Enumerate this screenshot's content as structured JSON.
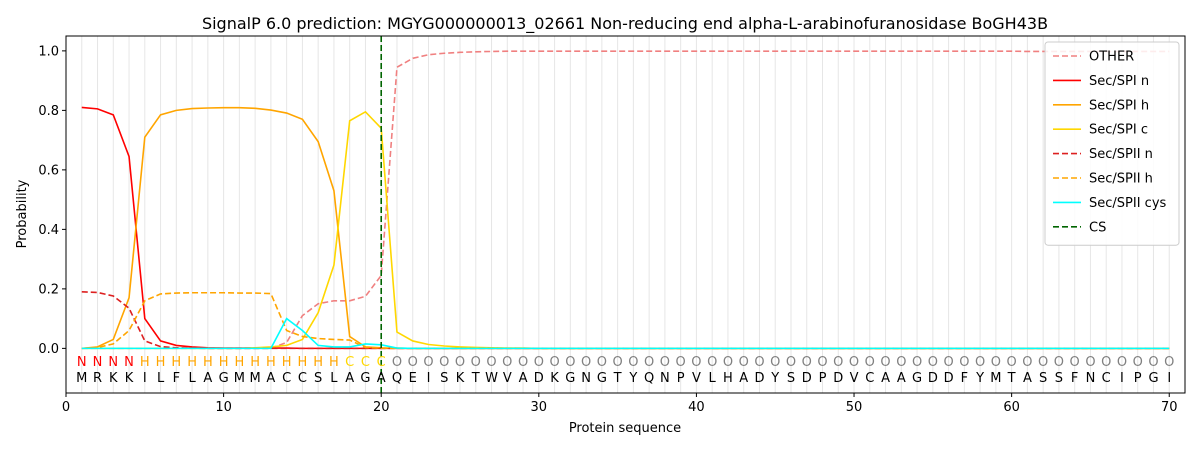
{
  "chart_data": {
    "type": "line",
    "title": "SignalP 6.0 prediction: MGYG000000013_02661 Non-reducing end alpha-L-arabinofuranosidase BoGH43B",
    "xlabel": "Protein sequence",
    "ylabel": "Probability",
    "xlim": [
      0,
      71
    ],
    "ylim": [
      -0.15,
      1.05
    ],
    "x_ticks": [
      0,
      10,
      20,
      30,
      40,
      50,
      60,
      70
    ],
    "y_ticks": [
      0.0,
      0.2,
      0.4,
      0.6,
      0.8,
      1.0
    ],
    "x_tick_labels": [
      "0",
      "10",
      "20",
      "30",
      "40",
      "50",
      "60",
      "70"
    ],
    "y_tick_labels": [
      "0.0",
      "0.2",
      "0.4",
      "0.6",
      "0.8",
      "1.0"
    ],
    "grid": "vertical lines at each position",
    "legend_position": "top-right",
    "sequence": [
      "M",
      "R",
      "K",
      "K",
      "I",
      "L",
      "F",
      "L",
      "A",
      "G",
      "M",
      "M",
      "A",
      "C",
      "C",
      "S",
      "L",
      "A",
      "G",
      "A",
      "Q",
      "E",
      "I",
      "S",
      "K",
      "T",
      "W",
      "V",
      "A",
      "D",
      "K",
      "G",
      "N",
      "G",
      "T",
      "Y",
      "Q",
      "N",
      "P",
      "V",
      "L",
      "H",
      "A",
      "D",
      "Y",
      "S",
      "D",
      "P",
      "D",
      "V",
      "C",
      "A",
      "A",
      "G",
      "D",
      "D",
      "F",
      "Y",
      "M",
      "T",
      "A",
      "S",
      "S",
      "F",
      "N",
      "C",
      "I",
      "P",
      "G",
      "I"
    ],
    "labels": [
      "N",
      "N",
      "N",
      "N",
      "H",
      "H",
      "H",
      "H",
      "H",
      "H",
      "H",
      "H",
      "H",
      "H",
      "H",
      "H",
      "H",
      "C",
      "C",
      "C",
      "O",
      "O",
      "O",
      "O",
      "O",
      "O",
      "O",
      "O",
      "O",
      "O",
      "O",
      "O",
      "O",
      "O",
      "O",
      "O",
      "O",
      "O",
      "O",
      "O",
      "O",
      "O",
      "O",
      "O",
      "O",
      "O",
      "O",
      "O",
      "O",
      "O",
      "O",
      "O",
      "O",
      "O",
      "O",
      "O",
      "O",
      "O",
      "O",
      "O",
      "O",
      "O",
      "O",
      "O",
      "O",
      "O",
      "O",
      "O",
      "O",
      "O"
    ],
    "label_colors": {
      "N": "#ff0000",
      "H": "#ffa500",
      "C": "#ffd700",
      "O": "#808080"
    },
    "cleavage_site": 20,
    "series": [
      {
        "name": "OTHER",
        "color": "#f08080",
        "dash": "dashed",
        "values": [
          0.0,
          0.0,
          0.0,
          0.0,
          0.0,
          0.0,
          0.0,
          0.0,
          0.0,
          0.0,
          0.0,
          0.0,
          0.0,
          0.02,
          0.11,
          0.15,
          0.16,
          0.16,
          0.175,
          0.245,
          0.945,
          0.975,
          0.987,
          0.992,
          0.995,
          0.997,
          0.998,
          0.999,
          0.999,
          0.999,
          0.999,
          0.999,
          0.999,
          0.999,
          0.999,
          0.999,
          0.999,
          0.999,
          0.999,
          0.999,
          0.999,
          0.999,
          0.999,
          0.999,
          0.999,
          0.999,
          0.999,
          0.999,
          0.999,
          0.999,
          0.999,
          0.999,
          0.999,
          0.999,
          0.999,
          0.999,
          0.999,
          0.999,
          0.999,
          0.999,
          0.998,
          0.998,
          0.998,
          0.998,
          0.998,
          0.998,
          0.998,
          0.998,
          0.998,
          0.998
        ]
      },
      {
        "name": "Sec/SPI n",
        "color": "#ff0000",
        "dash": "solid",
        "values": [
          0.81,
          0.805,
          0.785,
          0.645,
          0.1,
          0.025,
          0.01,
          0.005,
          0.002,
          0.001,
          0.001,
          0.001,
          0.001,
          0.001,
          0.0,
          0.0,
          0.0,
          0.0,
          0.0,
          0.0,
          0.0,
          0.0,
          0.0,
          0.0,
          0.0,
          0.0,
          0.0,
          0.0,
          0.0,
          0.0,
          0.0,
          0.0,
          0.0,
          0.0,
          0.0,
          0.0,
          0.0,
          0.0,
          0.0,
          0.0,
          0.0,
          0.0,
          0.0,
          0.0,
          0.0,
          0.0,
          0.0,
          0.0,
          0.0,
          0.0,
          0.0,
          0.0,
          0.0,
          0.0,
          0.0,
          0.0,
          0.0,
          0.0,
          0.0,
          0.0,
          0.0,
          0.0,
          0.0,
          0.0,
          0.0,
          0.0,
          0.0,
          0.0,
          0.0,
          0.0
        ]
      },
      {
        "name": "Sec/SPI h",
        "color": "#ffa500",
        "dash": "solid",
        "values": [
          0.0,
          0.005,
          0.03,
          0.17,
          0.71,
          0.785,
          0.8,
          0.806,
          0.808,
          0.809,
          0.809,
          0.807,
          0.801,
          0.791,
          0.77,
          0.695,
          0.53,
          0.04,
          0.005,
          0.002,
          0.001,
          0.0,
          0.0,
          0.0,
          0.0,
          0.0,
          0.0,
          0.0,
          0.0,
          0.0,
          0.0,
          0.0,
          0.0,
          0.0,
          0.0,
          0.0,
          0.0,
          0.0,
          0.0,
          0.0,
          0.0,
          0.0,
          0.0,
          0.0,
          0.0,
          0.0,
          0.0,
          0.0,
          0.0,
          0.0,
          0.0,
          0.0,
          0.0,
          0.0,
          0.0,
          0.0,
          0.0,
          0.0,
          0.0,
          0.0,
          0.0,
          0.0,
          0.0,
          0.0,
          0.0,
          0.0,
          0.0,
          0.0,
          0.0,
          0.0
        ]
      },
      {
        "name": "Sec/SPI c",
        "color": "#ffd700",
        "dash": "solid",
        "values": [
          0.0,
          0.0,
          0.0,
          0.0,
          0.0,
          0.0,
          0.0,
          0.0,
          0.0,
          0.0,
          0.0,
          0.002,
          0.005,
          0.01,
          0.03,
          0.12,
          0.28,
          0.765,
          0.795,
          0.74,
          0.055,
          0.025,
          0.013,
          0.008,
          0.005,
          0.003,
          0.002,
          0.001,
          0.001,
          0.0,
          0.0,
          0.0,
          0.0,
          0.0,
          0.0,
          0.0,
          0.0,
          0.0,
          0.0,
          0.0,
          0.0,
          0.0,
          0.0,
          0.0,
          0.0,
          0.0,
          0.0,
          0.0,
          0.0,
          0.0,
          0.0,
          0.0,
          0.0,
          0.0,
          0.0,
          0.0,
          0.0,
          0.0,
          0.0,
          0.0,
          0.0,
          0.0,
          0.0,
          0.0,
          0.0,
          0.0,
          0.0,
          0.0,
          0.0,
          0.0
        ]
      },
      {
        "name": "Sec/SPII n",
        "color": "#dd2020",
        "dash": "dashed",
        "values": [
          0.19,
          0.188,
          0.176,
          0.135,
          0.025,
          0.006,
          0.002,
          0.001,
          0.0,
          0.0,
          0.0,
          0.0,
          0.0,
          0.0,
          0.0,
          0.0,
          0.0,
          0.0,
          0.0,
          0.0,
          0.0,
          0.0,
          0.0,
          0.0,
          0.0,
          0.0,
          0.0,
          0.0,
          0.0,
          0.0,
          0.0,
          0.0,
          0.0,
          0.0,
          0.0,
          0.0,
          0.0,
          0.0,
          0.0,
          0.0,
          0.0,
          0.0,
          0.0,
          0.0,
          0.0,
          0.0,
          0.0,
          0.0,
          0.0,
          0.0,
          0.0,
          0.0,
          0.0,
          0.0,
          0.0,
          0.0,
          0.0,
          0.0,
          0.0,
          0.0,
          0.0,
          0.0,
          0.0,
          0.0,
          0.0,
          0.0,
          0.0,
          0.0,
          0.0,
          0.0
        ]
      },
      {
        "name": "Sec/SPII h",
        "color": "#ffa500",
        "dash": "dashed",
        "values": [
          0.0,
          0.003,
          0.015,
          0.06,
          0.16,
          0.183,
          0.186,
          0.187,
          0.187,
          0.187,
          0.186,
          0.186,
          0.184,
          0.06,
          0.04,
          0.033,
          0.03,
          0.028,
          0.003,
          0.001,
          0.0,
          0.0,
          0.0,
          0.0,
          0.0,
          0.0,
          0.0,
          0.0,
          0.0,
          0.0,
          0.0,
          0.0,
          0.0,
          0.0,
          0.0,
          0.0,
          0.0,
          0.0,
          0.0,
          0.0,
          0.0,
          0.0,
          0.0,
          0.0,
          0.0,
          0.0,
          0.0,
          0.0,
          0.0,
          0.0,
          0.0,
          0.0,
          0.0,
          0.0,
          0.0,
          0.0,
          0.0,
          0.0,
          0.0,
          0.0,
          0.0,
          0.0,
          0.0,
          0.0,
          0.0,
          0.0,
          0.0,
          0.0,
          0.0,
          0.0
        ]
      },
      {
        "name": "Sec/SPII cys",
        "color": "#00ffff",
        "dash": "solid",
        "values": [
          0.0,
          0.0,
          0.0,
          0.0,
          0.0,
          0.0,
          0.0,
          0.0,
          0.0,
          0.0,
          0.0,
          0.0,
          0.0,
          0.1,
          0.06,
          0.01,
          0.005,
          0.005,
          0.015,
          0.012,
          0.001,
          0.0,
          0.0,
          0.0,
          0.0,
          0.0,
          0.0,
          0.0,
          0.0,
          0.0,
          0.0,
          0.0,
          0.0,
          0.0,
          0.0,
          0.0,
          0.0,
          0.0,
          0.0,
          0.0,
          0.0,
          0.0,
          0.0,
          0.0,
          0.0,
          0.0,
          0.0,
          0.0,
          0.0,
          0.0,
          0.0,
          0.0,
          0.0,
          0.0,
          0.0,
          0.0,
          0.0,
          0.0,
          0.0,
          0.0,
          0.0,
          0.0,
          0.0,
          0.0,
          0.0,
          0.0,
          0.0,
          0.0,
          0.0,
          0.0
        ]
      },
      {
        "name": "CS",
        "color": "#006400",
        "dash": "dashed",
        "x": 20
      }
    ]
  }
}
